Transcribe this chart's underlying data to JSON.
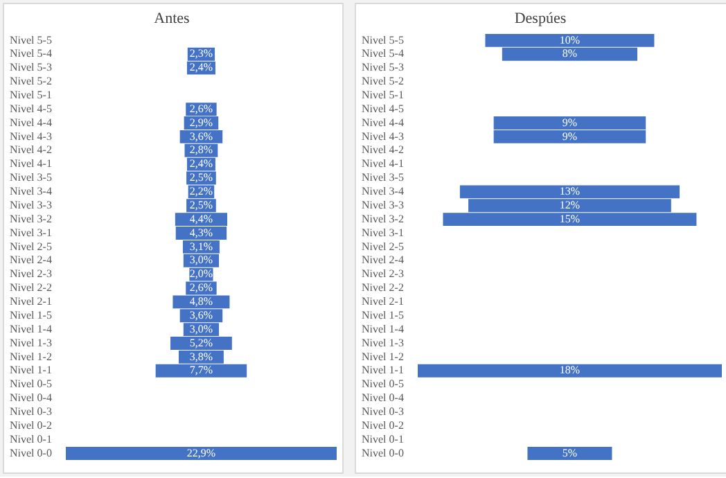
{
  "chart_data": [
    {
      "type": "other",
      "title": "Antes",
      "color": "#4472c4",
      "categories": [
        "Nivel 5-5",
        "Nivel 5-4",
        "Nivel 5-3",
        "Nivel 5-2",
        "Nivel 5-1",
        "Nivel 4-5",
        "Nivel 4-4",
        "Nivel 4-3",
        "Nivel 4-2",
        "Nivel 4-1",
        "Nivel 3-5",
        "Nivel 3-4",
        "Nivel 3-3",
        "Nivel 3-2",
        "Nivel 3-1",
        "Nivel 2-5",
        "Nivel 2-4",
        "Nivel 2-3",
        "Nivel 2-2",
        "Nivel 2-1",
        "Nivel 1-5",
        "Nivel 1-4",
        "Nivel 1-3",
        "Nivel 1-2",
        "Nivel 1-1",
        "Nivel 0-5",
        "Nivel 0-4",
        "Nivel 0-3",
        "Nivel 0-2",
        "Nivel 0-1",
        "Nivel 0-0"
      ],
      "values": [
        null,
        2.3,
        2.4,
        null,
        null,
        2.6,
        2.9,
        3.6,
        2.8,
        2.4,
        2.5,
        2.2,
        2.5,
        4.4,
        4.3,
        3.1,
        3.0,
        2.0,
        2.6,
        4.8,
        3.6,
        3.0,
        5.2,
        3.8,
        7.7,
        null,
        null,
        null,
        null,
        null,
        22.9
      ],
      "value_labels": [
        null,
        "2,3%",
        "2,4%",
        null,
        null,
        "2,6%",
        "2,9%",
        "3,6%",
        "2,8%",
        "2,4%",
        "2,5%",
        "2,2%",
        "2,5%",
        "4,4%",
        "4,3%",
        "3,1%",
        "3,0%",
        "2,0%",
        "2,6%",
        "4,8%",
        "3,6%",
        "3,0%",
        "5,2%",
        "3,8%",
        "7,7%",
        null,
        null,
        null,
        null,
        null,
        "22,9%"
      ]
    },
    {
      "type": "other",
      "title": "Despúes",
      "color": "#4472c4",
      "categories": [
        "Nivel 5-5",
        "Nivel 5-4",
        "Nivel 5-3",
        "Nivel 5-2",
        "Nivel 5-1",
        "Nivel 4-5",
        "Nivel 4-4",
        "Nivel 4-3",
        "Nivel 4-2",
        "Nivel 4-1",
        "Nivel 3-5",
        "Nivel 3-4",
        "Nivel 3-3",
        "Nivel 3-2",
        "Nivel 3-1",
        "Nivel 2-5",
        "Nivel 2-4",
        "Nivel 2-3",
        "Nivel 2-2",
        "Nivel 2-1",
        "Nivel 1-5",
        "Nivel 1-4",
        "Nivel 1-3",
        "Nivel 1-2",
        "Nivel 1-1",
        "Nivel 0-5",
        "Nivel 0-4",
        "Nivel 0-3",
        "Nivel 0-2",
        "Nivel 0-1",
        "Nivel 0-0"
      ],
      "values": [
        10,
        8,
        null,
        null,
        null,
        null,
        9,
        9,
        null,
        null,
        null,
        13,
        12,
        15,
        null,
        null,
        null,
        null,
        null,
        null,
        null,
        null,
        null,
        null,
        18,
        null,
        null,
        null,
        null,
        null,
        5
      ],
      "value_labels": [
        "10%",
        "8%",
        null,
        null,
        null,
        null,
        "9%",
        "9%",
        null,
        null,
        null,
        "13%",
        "12%",
        "15%",
        null,
        null,
        null,
        null,
        null,
        null,
        null,
        null,
        null,
        null,
        "18%",
        null,
        null,
        null,
        null,
        null,
        "5%"
      ]
    }
  ]
}
